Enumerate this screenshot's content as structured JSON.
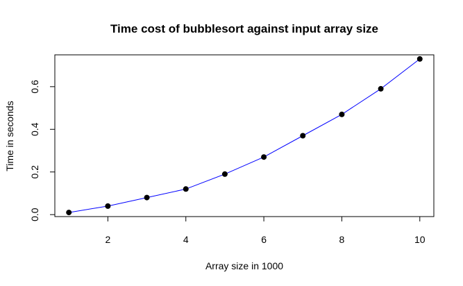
{
  "chart_data": {
    "type": "line",
    "title": "Time cost of bubblesort against input array size",
    "xlabel": "Array size in 1000",
    "ylabel": "Time in seconds",
    "x": [
      1,
      2,
      3,
      4,
      5,
      6,
      7,
      8,
      9,
      10
    ],
    "series": [
      {
        "values": [
          0.01,
          0.04,
          0.08,
          0.12,
          0.19,
          0.27,
          0.37,
          0.47,
          0.59,
          0.73
        ]
      }
    ],
    "xlim": [
      0.64,
      10.36
    ],
    "ylim": [
      -0.0092,
      0.7492
    ],
    "xticks": [
      2,
      4,
      6,
      8,
      10
    ],
    "yticks": [
      0.0,
      0.2,
      0.4,
      0.6
    ],
    "xtick_labels": [
      "2",
      "4",
      "6",
      "8",
      "10"
    ],
    "ytick_labels": [
      "0.0",
      "0.2",
      "0.4",
      "0.6"
    ],
    "line_color": "#0000ff",
    "marker_color": "#000000",
    "grid": false
  }
}
